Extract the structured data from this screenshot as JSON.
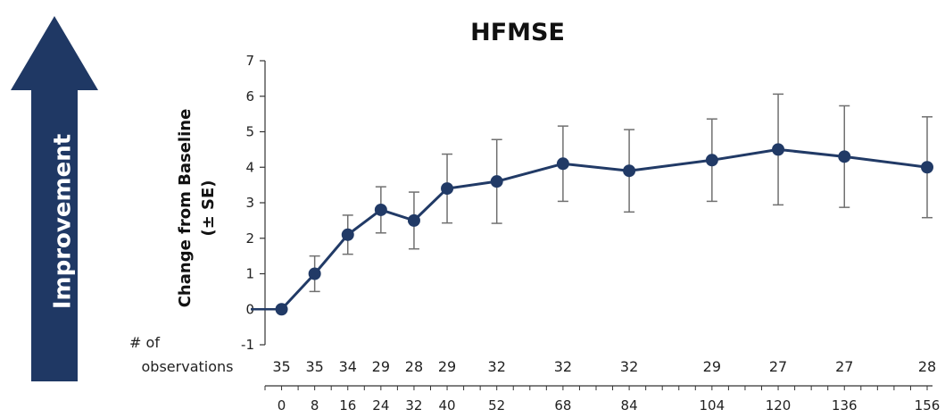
{
  "chart_data": {
    "type": "line",
    "title": "HFMSE",
    "ylabel_line1": "Change from Baseline",
    "ylabel_line2": "(± SE)",
    "ylim": [
      -1,
      7
    ],
    "yticks": [
      -1,
      0,
      1,
      2,
      3,
      4,
      5,
      6,
      7
    ],
    "x": [
      0,
      8,
      16,
      24,
      32,
      40,
      52,
      68,
      84,
      104,
      120,
      136,
      156
    ],
    "xlim": [
      -4,
      156
    ],
    "values": [
      0,
      1.0,
      2.1,
      2.8,
      2.5,
      3.4,
      3.6,
      4.1,
      3.9,
      4.2,
      4.5,
      4.3,
      4.0
    ],
    "se": [
      0,
      0.5,
      0.55,
      0.65,
      0.8,
      0.97,
      1.18,
      1.06,
      1.16,
      1.16,
      1.56,
      1.43,
      1.42
    ],
    "observations_label_line1": "# of",
    "observations_label_line2": "observations",
    "observations": [
      35,
      35,
      34,
      29,
      28,
      29,
      32,
      32,
      32,
      29,
      27,
      27,
      28
    ],
    "arrow_label": "Improvement",
    "colors": {
      "line": "#213a66",
      "marker": "#213a66",
      "errorbar": "#707070",
      "arrow": "#1f3864"
    }
  }
}
